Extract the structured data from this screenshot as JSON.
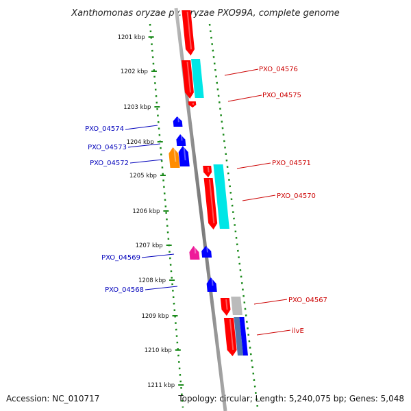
{
  "title": "Xanthomonas oryzae pv. oryzae PXO99A, complete genome",
  "accession": "Accession: NC_010717",
  "summary": "Topology: circular; Length: 5,240,075 bp; Genes: 5,048",
  "ticks": [
    "1201 kbp",
    "1202 kbp",
    "1203 kbp",
    "1204 kbp",
    "1205 kbp",
    "1206 kbp",
    "1207 kbp",
    "1208 kbp",
    "1209 kbp",
    "1210 kbp",
    "1211 kbp"
  ],
  "forward_labels": [
    "PXO_04576",
    "PXO_04575",
    "PXO_04571",
    "PXO_04570",
    "PXO_04567",
    "ilvE"
  ],
  "reverse_labels": [
    "PXO_04574",
    "PXO_04573",
    "PXO_04572",
    "PXO_04569",
    "PXO_04568"
  ],
  "colors": {
    "forward_label": "#cc0000",
    "reverse_label": "#0000bb",
    "backbone": "#888888",
    "dots": "#1a8a1a",
    "cds_red": "#ff0000",
    "cds_cyan": "#00e6e6",
    "cds_blue": "#0000ff",
    "cds_orange": "#ff8c00",
    "cds_pink": "#ee1a99",
    "cds_gray": "#bbbbbb",
    "cds_steel": "#5577aa"
  }
}
